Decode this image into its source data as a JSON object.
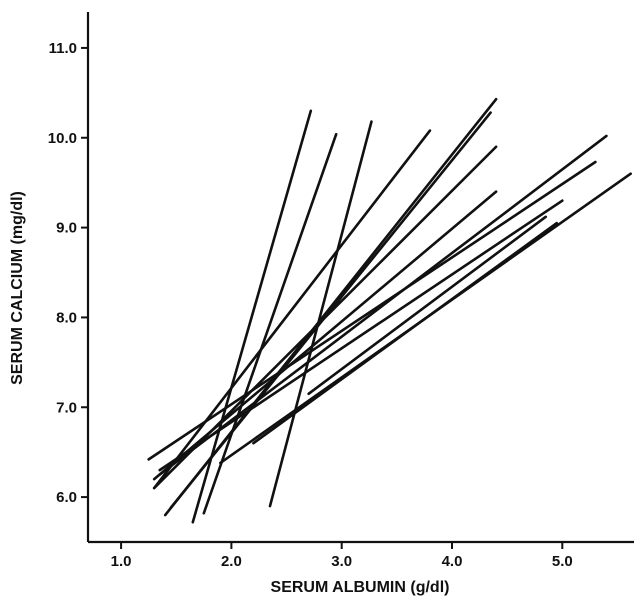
{
  "chart_data": {
    "type": "line",
    "xlabel": "SERUM ALBUMIN (g/dl)",
    "ylabel": "SERUM CALCIUM (mg/dl)",
    "xlim": [
      0.7,
      5.65
    ],
    "ylim": [
      5.5,
      11.4
    ],
    "x_ticks": [
      1.0,
      2.0,
      3.0,
      4.0,
      5.0
    ],
    "x_tick_labels": [
      "1.0",
      "2.0",
      "3.0",
      "4.0",
      "5.0"
    ],
    "y_ticks": [
      6.0,
      7.0,
      8.0,
      9.0,
      10.0,
      11.0
    ],
    "y_tick_labels": [
      "6.0",
      "7.0",
      "8.0",
      "9.0",
      "10.0",
      "11.0"
    ],
    "grid": false,
    "series": [
      {
        "x": [
          1.65,
          2.72
        ],
        "y": [
          5.72,
          10.3
        ]
      },
      {
        "x": [
          1.75,
          2.95
        ],
        "y": [
          5.82,
          10.04
        ]
      },
      {
        "x": [
          2.35,
          3.27
        ],
        "y": [
          5.9,
          10.18
        ]
      },
      {
        "x": [
          1.4,
          4.4
        ],
        "y": [
          5.8,
          10.43
        ]
      },
      {
        "x": [
          1.45,
          4.35
        ],
        "y": [
          5.88,
          10.28
        ]
      },
      {
        "x": [
          1.3,
          3.8
        ],
        "y": [
          6.1,
          10.08
        ]
      },
      {
        "x": [
          1.3,
          4.4
        ],
        "y": [
          6.1,
          9.9
        ]
      },
      {
        "x": [
          1.3,
          4.4
        ],
        "y": [
          6.2,
          9.4
        ]
      },
      {
        "x": [
          1.35,
          5.4
        ],
        "y": [
          6.25,
          10.02
        ]
      },
      {
        "x": [
          1.25,
          5.3
        ],
        "y": [
          6.42,
          9.73
        ]
      },
      {
        "x": [
          1.35,
          5.0
        ],
        "y": [
          6.3,
          9.3
        ]
      },
      {
        "x": [
          1.9,
          5.62
        ],
        "y": [
          6.38,
          9.6
        ]
      },
      {
        "x": [
          2.2,
          4.95
        ],
        "y": [
          6.6,
          9.05
        ]
      },
      {
        "x": [
          2.7,
          4.85
        ],
        "y": [
          7.15,
          9.12
        ]
      }
    ]
  }
}
